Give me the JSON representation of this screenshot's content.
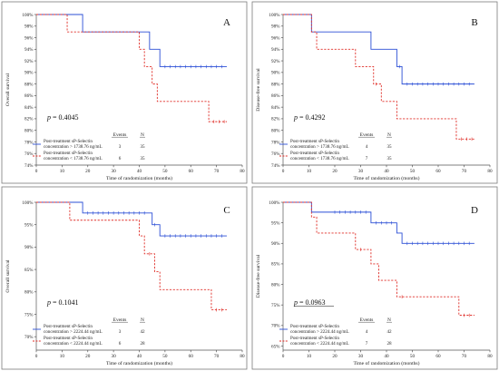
{
  "chart_data": [
    {
      "type": "line",
      "panel_label": "A",
      "title": "",
      "xlabel": "Time of randomization (months)",
      "ylabel": "Overall survival",
      "xlim": [
        0,
        80
      ],
      "ylim": [
        74,
        100
      ],
      "xticks": [
        "0",
        "10",
        "20",
        "30",
        "40",
        "50",
        "60",
        "70",
        "80"
      ],
      "yticks": [
        "74%",
        "76%",
        "78%",
        "80%",
        "82%",
        "84%",
        "86%",
        "88%",
        "90%",
        "92%",
        "94%",
        "96%",
        "98%",
        "100%"
      ],
      "p_value": "p = 0.4045",
      "p_underlined": false,
      "legend_headers": {
        "events": "Events",
        "n": "N"
      },
      "colors": {
        "high": "#2b4fd6",
        "low": "#e0302a"
      },
      "series": [
        {
          "key": "high",
          "name_line1": "Post-treatment sP-Selectin",
          "name_line2": "concentration > 1738.76 ng/mL",
          "events": "3",
          "n": "35",
          "style": "solid",
          "steps": [
            [
              0,
              100
            ],
            [
              18,
              97
            ],
            [
              44,
              94
            ],
            [
              48,
              91
            ],
            [
              74,
              91
            ]
          ],
          "censored": [
            50,
            52,
            54,
            56,
            58,
            60,
            62,
            64,
            66,
            68,
            70,
            72
          ]
        },
        {
          "key": "low",
          "name_line1": "Post-treatment sP-Selectin",
          "name_line2": "concentration < 1738.76 ng/mL",
          "events": "6",
          "n": "35",
          "style": "dashed",
          "steps": [
            [
              0,
              100
            ],
            [
              12,
              97
            ],
            [
              40,
              94
            ],
            [
              42,
              91
            ],
            [
              45,
              88
            ],
            [
              47,
              85
            ],
            [
              67,
              81.5
            ],
            [
              74,
              81.5
            ]
          ],
          "censored": [
            69,
            71,
            73
          ]
        }
      ]
    },
    {
      "type": "line",
      "panel_label": "B",
      "title": "",
      "xlabel": "Time of randomization (months)",
      "ylabel": "Disease-free survival",
      "xlim": [
        0,
        80
      ],
      "ylim": [
        74,
        100
      ],
      "xticks": [
        "0",
        "10",
        "20",
        "30",
        "40",
        "50",
        "60",
        "70",
        "80"
      ],
      "yticks": [
        "74%",
        "76%",
        "78%",
        "80%",
        "82%",
        "84%",
        "86%",
        "88%",
        "90%",
        "92%",
        "94%",
        "96%",
        "98%",
        "100%"
      ],
      "p_value": "p = 0.4292",
      "p_underlined": false,
      "legend_headers": {
        "events": "Events",
        "n": "N"
      },
      "colors": {
        "high": "#2b4fd6",
        "low": "#e0302a"
      },
      "series": [
        {
          "key": "high",
          "name_line1": "Post-treatment sP-Selectin",
          "name_line2": "concentration > 1738.76 ng/mL",
          "events": "4",
          "n": "35",
          "style": "solid",
          "steps": [
            [
              0,
              100
            ],
            [
              11,
              97
            ],
            [
              34,
              94
            ],
            [
              44,
              91
            ],
            [
              46,
              88
            ],
            [
              74,
              88
            ]
          ],
          "censored": [
            45,
            48,
            50,
            52,
            54,
            56,
            58,
            60,
            62,
            64,
            66,
            68,
            70,
            72
          ]
        },
        {
          "key": "low",
          "name_line1": "Post-treatment sP-Selectin",
          "name_line2": "concentration < 1738.76 ng/mL",
          "events": "7",
          "n": "35",
          "style": "dashed",
          "steps": [
            [
              0,
              100
            ],
            [
              11,
              97
            ],
            [
              13,
              94
            ],
            [
              28,
              91
            ],
            [
              35,
              88
            ],
            [
              38,
              85
            ],
            [
              44,
              82
            ],
            [
              67,
              78.5
            ],
            [
              74,
              78.5
            ]
          ],
          "censored": [
            36,
            69,
            71,
            73
          ]
        }
      ]
    },
    {
      "type": "line",
      "panel_label": "C",
      "title": "",
      "xlabel": "Time of randomization (months)",
      "ylabel": "Overall survival",
      "xlim": [
        0,
        80
      ],
      "ylim": [
        67,
        100
      ],
      "xticks": [
        "0",
        "10",
        "20",
        "30",
        "40",
        "50",
        "60",
        "70",
        "80"
      ],
      "yticks": [
        "70%",
        "75%",
        "80%",
        "85%",
        "90%",
        "95%",
        "100%"
      ],
      "p_value": "p = 0.1041",
      "p_underlined": false,
      "legend_headers": {
        "events": "Events",
        "n": "N"
      },
      "colors": {
        "high": "#2b4fd6",
        "low": "#e0302a"
      },
      "series": [
        {
          "key": "high",
          "name_line1": "Post-treatment sP-Selectin",
          "name_line2": "concentration > 2224.44 ng/mL",
          "events": "3",
          "n": "42",
          "style": "solid",
          "steps": [
            [
              0,
              100
            ],
            [
              18,
              97.6
            ],
            [
              45,
              95
            ],
            [
              48,
              92.5
            ],
            [
              74,
              92.5
            ]
          ],
          "censored": [
            20,
            22,
            24,
            26,
            28,
            30,
            32,
            34,
            36,
            38,
            40,
            42,
            46,
            50,
            52,
            54,
            56,
            58,
            60,
            62,
            64,
            66,
            68,
            70,
            72
          ]
        },
        {
          "key": "low",
          "name_line1": "Post-treatment sP-Selectin",
          "name_line2": "concentration < 2224.44 ng/mL",
          "events": "6",
          "n": "28",
          "style": "dashed",
          "steps": [
            [
              0,
              100
            ],
            [
              13,
              96
            ],
            [
              40,
              92.5
            ],
            [
              42,
              88.5
            ],
            [
              46,
              84.5
            ],
            [
              48,
              80.5
            ],
            [
              68,
              76
            ],
            [
              74,
              76
            ]
          ],
          "censored": [
            44,
            70,
            72
          ]
        }
      ]
    },
    {
      "type": "line",
      "panel_label": "D",
      "title": "",
      "xlabel": "Time of randomization (months)",
      "ylabel": "Disease-free survival",
      "xlim": [
        0,
        80
      ],
      "ylim": [
        64,
        100
      ],
      "xticks": [
        "0",
        "10",
        "20",
        "30",
        "40",
        "50",
        "60",
        "70",
        "80"
      ],
      "yticks": [
        "65%",
        "70%",
        "75%",
        "80%",
        "85%",
        "90%",
        "95%",
        "100%"
      ],
      "p_value": "p = 0.0963",
      "p_underlined": true,
      "legend_headers": {
        "events": "Events",
        "n": "N"
      },
      "colors": {
        "high": "#2b4fd6",
        "low": "#e0302a"
      },
      "series": [
        {
          "key": "high",
          "name_line1": "Post-treatment sP-Selectin",
          "name_line2": "concentration > 2224.44 ng/mL",
          "events": "4",
          "n": "42",
          "style": "solid",
          "steps": [
            [
              0,
              100
            ],
            [
              11,
              97.6
            ],
            [
              34,
              95
            ],
            [
              44,
              92.5
            ],
            [
              46,
              90
            ],
            [
              74,
              90
            ]
          ],
          "censored": [
            20,
            22,
            24,
            26,
            28,
            30,
            32,
            36,
            38,
            40,
            42,
            48,
            50,
            52,
            54,
            56,
            58,
            60,
            62,
            64,
            66,
            68,
            70,
            72
          ]
        },
        {
          "key": "low",
          "name_line1": "Post-treatment sP-Selectin",
          "name_line2": "concentration < 2224.44 ng/mL",
          "events": "7",
          "n": "28",
          "style": "dashed",
          "steps": [
            [
              0,
              100
            ],
            [
              11,
              96.4
            ],
            [
              13,
              92.5
            ],
            [
              28,
              88.5
            ],
            [
              34,
              85
            ],
            [
              37,
              81
            ],
            [
              44,
              77
            ],
            [
              68,
              72.5
            ],
            [
              74,
              72.5
            ]
          ],
          "censored": [
            30,
            46,
            70,
            72
          ]
        }
      ]
    }
  ]
}
